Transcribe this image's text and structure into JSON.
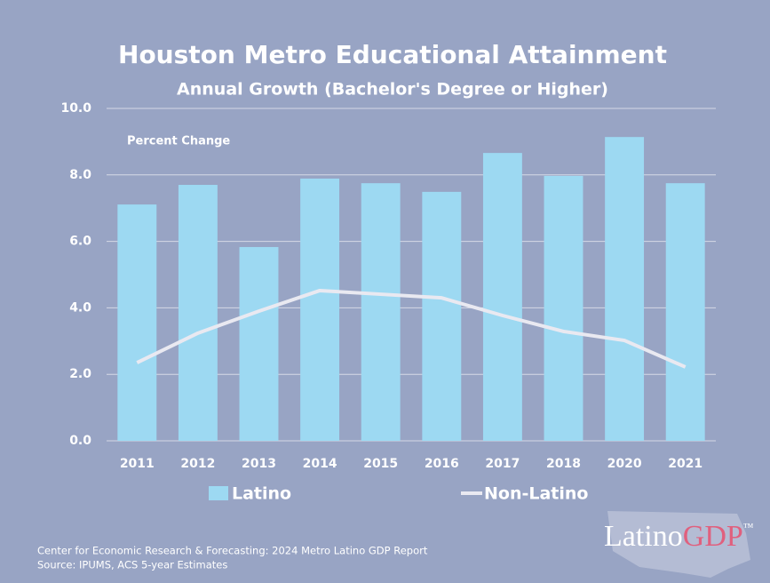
{
  "chart_data": {
    "type": "bar",
    "title": "Houston Metro Educational Attainment",
    "subtitle": "Annual Growth (Bachelor's Degree or Higher)",
    "annotation": "Percent Change",
    "categories": [
      "2011",
      "2012",
      "2013",
      "2014",
      "2015",
      "2016",
      "2017",
      "2018",
      "2020",
      "2021"
    ],
    "series": [
      {
        "name": "Latino",
        "type": "bar",
        "color": "#9dd9f2",
        "values": [
          7.11,
          7.7,
          5.83,
          7.89,
          7.75,
          7.49,
          8.66,
          7.97,
          9.14,
          7.75
        ]
      },
      {
        "name": "Non-Latino",
        "type": "line",
        "color": "#e9e9f1",
        "values": [
          2.35,
          3.24,
          3.9,
          4.52,
          4.41,
          4.3,
          3.77,
          3.29,
          3.02,
          2.22
        ]
      }
    ],
    "ylim": [
      0,
      10
    ],
    "yticks": [
      {
        "value": 0,
        "label": "0.0"
      },
      {
        "value": 2,
        "label": "2.0"
      },
      {
        "value": 4,
        "label": "4.0"
      },
      {
        "value": 6,
        "label": "6.0"
      },
      {
        "value": 8,
        "label": "8.0"
      },
      {
        "value": 10,
        "label": "10.0"
      }
    ],
    "grid": true,
    "legend": "bottom",
    "footer": [
      "Center for Economic Research & Forecasting: 2024 Metro Latino GDP Report",
      "Source: IPUMS, ACS 5-year Estimates"
    ],
    "logo": {
      "part1": "Latino",
      "part2": "GDP",
      "mark": "™"
    }
  }
}
